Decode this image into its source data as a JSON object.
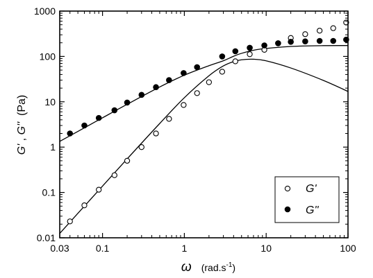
{
  "chart_data": {
    "type": "scatter",
    "x_scale": "log",
    "y_scale": "log",
    "xlim": [
      0.03,
      100
    ],
    "ylim": [
      0.01,
      1000
    ],
    "x_ticks": [
      0.03,
      0.1,
      1,
      10,
      100
    ],
    "x_tick_labels": [
      "0.03",
      "0.1",
      "1",
      "10",
      "100"
    ],
    "y_ticks": [
      0.01,
      0.1,
      1,
      10,
      100,
      1000
    ],
    "y_tick_labels": [
      "0.01",
      "0.1",
      "1",
      "10",
      "100",
      "1000"
    ],
    "xlabel": {
      "symbol": "ω",
      "units": "(rad.s",
      "units_sup": "-1",
      "units_end": ")"
    },
    "ylabel": {
      "g1": "G'",
      "sep": " , ",
      "g2": "G''",
      "units": "  (Pa)"
    },
    "legend": {
      "position": "bottom-right",
      "entries": [
        {
          "label": "G'",
          "marker": "open-circle"
        },
        {
          "label": "G''",
          "marker": "filled-circle"
        }
      ]
    },
    "series": [
      {
        "name": "G'",
        "marker": "open-circle",
        "x": [
          0.04,
          0.06,
          0.09,
          0.14,
          0.2,
          0.3,
          0.45,
          0.65,
          0.98,
          1.43,
          2.0,
          2.9,
          4.2,
          6.3,
          9.5,
          14,
          20,
          30,
          45,
          66,
          95
        ],
        "y": [
          0.023,
          0.052,
          0.115,
          0.24,
          0.5,
          1.0,
          2.0,
          4.2,
          8.5,
          15.5,
          27,
          46,
          78,
          112,
          140,
          195,
          255,
          310,
          370,
          420,
          560
        ]
      },
      {
        "name": "G''",
        "marker": "filled-circle",
        "x": [
          0.04,
          0.06,
          0.09,
          0.14,
          0.2,
          0.3,
          0.45,
          0.65,
          0.98,
          1.43,
          2.9,
          4.2,
          6.3,
          9.5,
          14,
          20,
          30,
          45,
          66,
          95
        ],
        "y": [
          2.0,
          3.0,
          4.4,
          6.5,
          9.6,
          14.2,
          21,
          30,
          43,
          58,
          100,
          130,
          155,
          175,
          195,
          210,
          215,
          220,
          220,
          235
        ]
      }
    ],
    "model_curves": [
      {
        "name": "G' model",
        "x": [
          0.03,
          0.05,
          0.1,
          0.2,
          0.5,
          1,
          2,
          3,
          4,
          5,
          7,
          10,
          20,
          50,
          100
        ],
        "y": [
          0.0125,
          0.0346,
          0.138,
          0.55,
          3.32,
          12.3,
          37.5,
          61.8,
          77.0,
          84.4,
          86.8,
          80.0,
          55.6,
          29.6,
          16.9
        ]
      },
      {
        "name": "G'' model",
        "x": [
          0.03,
          0.05,
          0.1,
          0.2,
          0.5,
          1,
          2,
          3,
          4,
          5,
          7,
          10,
          20,
          50,
          100
        ],
        "y": [
          1.34,
          2.22,
          4.43,
          8.79,
          21.2,
          38.6,
          62.5,
          80.4,
          101,
          117,
          137,
          150,
          166,
          173,
          174
        ]
      }
    ],
    "grid": false
  }
}
